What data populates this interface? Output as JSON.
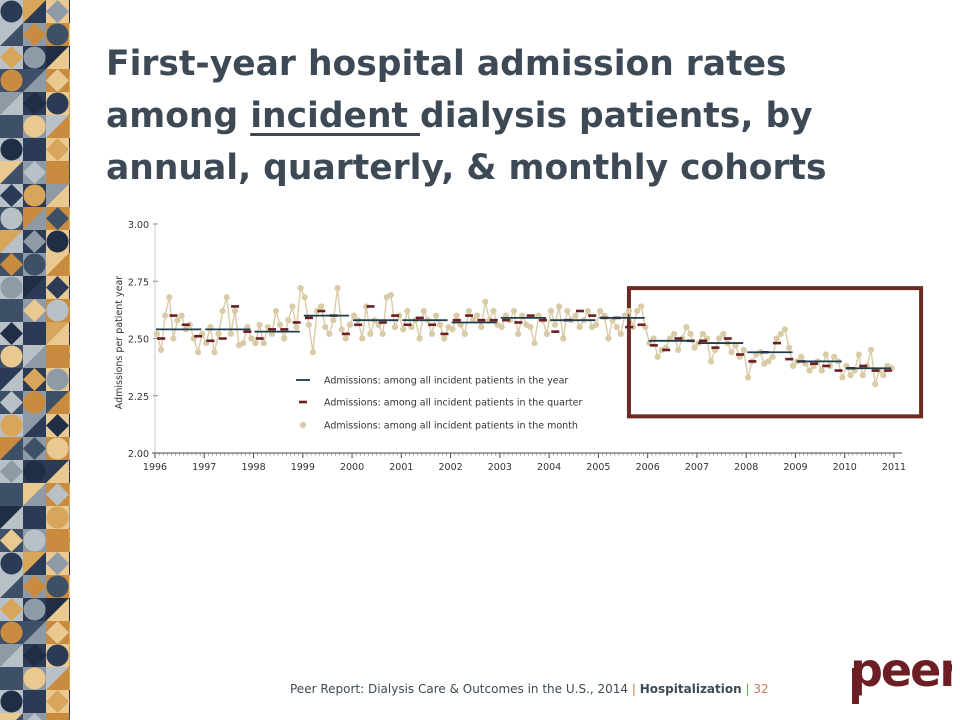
{
  "slide": {
    "title_part1": "First-year hospital admission rates among ",
    "title_underlined": "incident ",
    "title_part2": "dialysis patients, by annual, quarterly, & monthly cohorts"
  },
  "footer": {
    "report": "Peer Report: Dialysis Care & Outcomes in the U.S., 2014",
    "separator": "|",
    "section": "Hospitalization",
    "page": "32"
  },
  "logo": {
    "text": "peer"
  },
  "colors": {
    "title": "#3d4a56",
    "year_line": "#1f3d4c",
    "quarter_mark": "#6b1f24",
    "month_dot": "#d9cba6",
    "highlight_box": "#6b2a22",
    "accent": "#c8794f"
  },
  "chart_data": {
    "type": "line",
    "title": "",
    "xlabel": "",
    "ylabel": "Admissions per patient year",
    "ylim": [
      2.0,
      3.0
    ],
    "yticks": [
      "3.00",
      "2.75",
      "2.50",
      "2.25",
      "2.00"
    ],
    "xlim": [
      1996,
      2011
    ],
    "xticks": [
      "1996",
      "1997",
      "1998",
      "1999",
      "2000",
      "2001",
      "2002",
      "2003",
      "2004",
      "2005",
      "2006",
      "2007",
      "2008",
      "2009",
      "2010",
      "2011"
    ],
    "grid": false,
    "legend_position": "inside-bottom-center",
    "highlight": {
      "x_from": 2005.62,
      "x_to": 2011.55,
      "y_from": 2.16,
      "y_to": 2.72
    },
    "series": [
      {
        "name": "Admissions: among all incident patients in the year",
        "style": "year-segment",
        "x": [
          1996,
          1997,
          1998,
          1999,
          2000,
          2001,
          2002,
          2003,
          2004,
          2005,
          2006,
          2007,
          2008,
          2009,
          2010
        ],
        "y": [
          2.54,
          2.54,
          2.53,
          2.6,
          2.58,
          2.58,
          2.57,
          2.59,
          2.58,
          2.59,
          2.49,
          2.48,
          2.44,
          2.4,
          2.37
        ]
      },
      {
        "name": "Admissions: among all incident patients in the quarter",
        "style": "quarter-dash",
        "x": [
          1996.125,
          1996.375,
          1996.625,
          1996.875,
          1997.125,
          1997.375,
          1997.625,
          1997.875,
          1998.125,
          1998.375,
          1998.625,
          1998.875,
          1999.125,
          1999.375,
          1999.625,
          1999.875,
          2000.125,
          2000.375,
          2000.625,
          2000.875,
          2001.125,
          2001.375,
          2001.625,
          2001.875,
          2002.125,
          2002.375,
          2002.625,
          2002.875,
          2003.125,
          2003.375,
          2003.625,
          2003.875,
          2004.125,
          2004.375,
          2004.625,
          2004.875,
          2005.125,
          2005.375,
          2005.625,
          2005.875,
          2006.125,
          2006.375,
          2006.625,
          2006.875,
          2007.125,
          2007.375,
          2007.625,
          2007.875,
          2008.125,
          2008.375,
          2008.625,
          2008.875,
          2009.125,
          2009.375,
          2009.625,
          2009.875,
          2010.125,
          2010.375,
          2010.625,
          2010.875
        ],
        "y": [
          2.5,
          2.6,
          2.56,
          2.51,
          2.49,
          2.5,
          2.64,
          2.53,
          2.5,
          2.54,
          2.54,
          2.57,
          2.59,
          2.62,
          2.6,
          2.52,
          2.56,
          2.64,
          2.57,
          2.6,
          2.56,
          2.59,
          2.56,
          2.52,
          2.58,
          2.6,
          2.58,
          2.58,
          2.58,
          2.57,
          2.6,
          2.58,
          2.53,
          2.58,
          2.62,
          2.6,
          2.59,
          2.59,
          2.55,
          2.56,
          2.47,
          2.45,
          2.5,
          2.49,
          2.49,
          2.46,
          2.5,
          2.43,
          2.4,
          2.44,
          2.48,
          2.41,
          2.4,
          2.39,
          2.38,
          2.36,
          2.37,
          2.38,
          2.36,
          2.36
        ]
      },
      {
        "name": "Admissions: among all incident patients in the month",
        "style": "month-dot",
        "start": 1996.04,
        "step": 0.0833,
        "y": [
          2.52,
          2.45,
          2.6,
          2.68,
          2.5,
          2.58,
          2.6,
          2.54,
          2.56,
          2.5,
          2.44,
          2.52,
          2.48,
          2.55,
          2.44,
          2.52,
          2.62,
          2.68,
          2.52,
          2.62,
          2.47,
          2.48,
          2.55,
          2.5,
          2.48,
          2.56,
          2.48,
          2.55,
          2.52,
          2.62,
          2.56,
          2.5,
          2.58,
          2.64,
          2.55,
          2.72,
          2.68,
          2.56,
          2.44,
          2.62,
          2.64,
          2.55,
          2.52,
          2.58,
          2.72,
          2.54,
          2.5,
          2.56,
          2.6,
          2.58,
          2.5,
          2.64,
          2.52,
          2.58,
          2.56,
          2.52,
          2.68,
          2.69,
          2.55,
          2.6,
          2.54,
          2.62,
          2.55,
          2.58,
          2.5,
          2.62,
          2.58,
          2.52,
          2.6,
          2.56,
          2.5,
          2.55,
          2.54,
          2.6,
          2.56,
          2.52,
          2.62,
          2.58,
          2.6,
          2.55,
          2.66,
          2.58,
          2.62,
          2.56,
          2.55,
          2.6,
          2.58,
          2.62,
          2.52,
          2.6,
          2.56,
          2.55,
          2.48,
          2.6,
          2.58,
          2.52,
          2.62,
          2.56,
          2.64,
          2.5,
          2.62,
          2.58,
          2.6,
          2.55,
          2.58,
          2.62,
          2.55,
          2.56,
          2.62,
          2.6,
          2.5,
          2.58,
          2.55,
          2.52,
          2.6,
          2.62,
          2.55,
          2.62,
          2.64,
          2.55,
          2.48,
          2.5,
          2.42,
          2.45,
          2.46,
          2.5,
          2.52,
          2.45,
          2.5,
          2.55,
          2.52,
          2.46,
          2.48,
          2.52,
          2.5,
          2.4,
          2.45,
          2.5,
          2.52,
          2.48,
          2.44,
          2.47,
          2.42,
          2.45,
          2.33,
          2.4,
          2.43,
          2.44,
          2.39,
          2.4,
          2.42,
          2.5,
          2.52,
          2.54,
          2.46,
          2.38,
          2.4,
          2.42,
          2.39,
          2.36,
          2.38,
          2.4,
          2.36,
          2.43,
          2.38,
          2.42,
          2.4,
          2.33,
          2.38,
          2.34,
          2.36,
          2.43,
          2.34,
          2.38,
          2.45,
          2.3,
          2.36,
          2.34,
          2.38,
          2.37
        ]
      }
    ]
  }
}
